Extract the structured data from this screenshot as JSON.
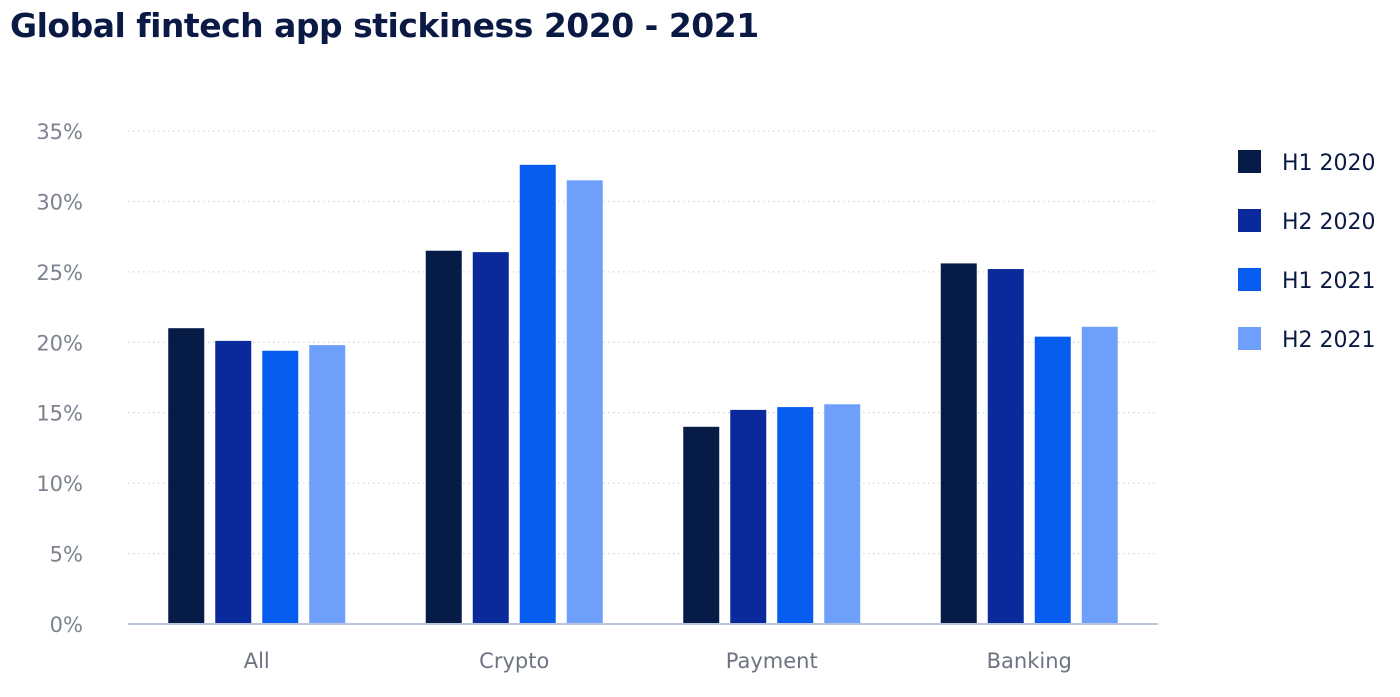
{
  "page": {
    "title": "Global fintech app stickiness 2020 - 2021"
  },
  "chart_data": {
    "type": "bar",
    "title": "Global fintech app stickiness 2020 - 2021",
    "xlabel": "",
    "ylabel": "",
    "categories": [
      "All",
      "Crypto",
      "Payment",
      "Banking"
    ],
    "series": [
      {
        "name": "H1 2020",
        "color": "#071b47",
        "values": [
          21.0,
          26.5,
          14.0,
          25.6
        ]
      },
      {
        "name": "H2 2020",
        "color": "#0a2a9c",
        "values": [
          20.1,
          26.4,
          15.2,
          25.2
        ]
      },
      {
        "name": "H1 2021",
        "color": "#075df0",
        "values": [
          19.4,
          32.6,
          15.4,
          20.4
        ]
      },
      {
        "name": "H2 2021",
        "color": "#6ea0fb",
        "values": [
          19.8,
          31.5,
          15.6,
          21.1
        ]
      }
    ],
    "ylim": [
      0,
      35
    ],
    "yticks": [
      0,
      5,
      10,
      15,
      20,
      25,
      30,
      35
    ],
    "ytick_labels": [
      "0%",
      "5%",
      "10%",
      "15%",
      "20%",
      "25%",
      "30%",
      "35%"
    ],
    "grid": true,
    "legend_position": "right"
  }
}
